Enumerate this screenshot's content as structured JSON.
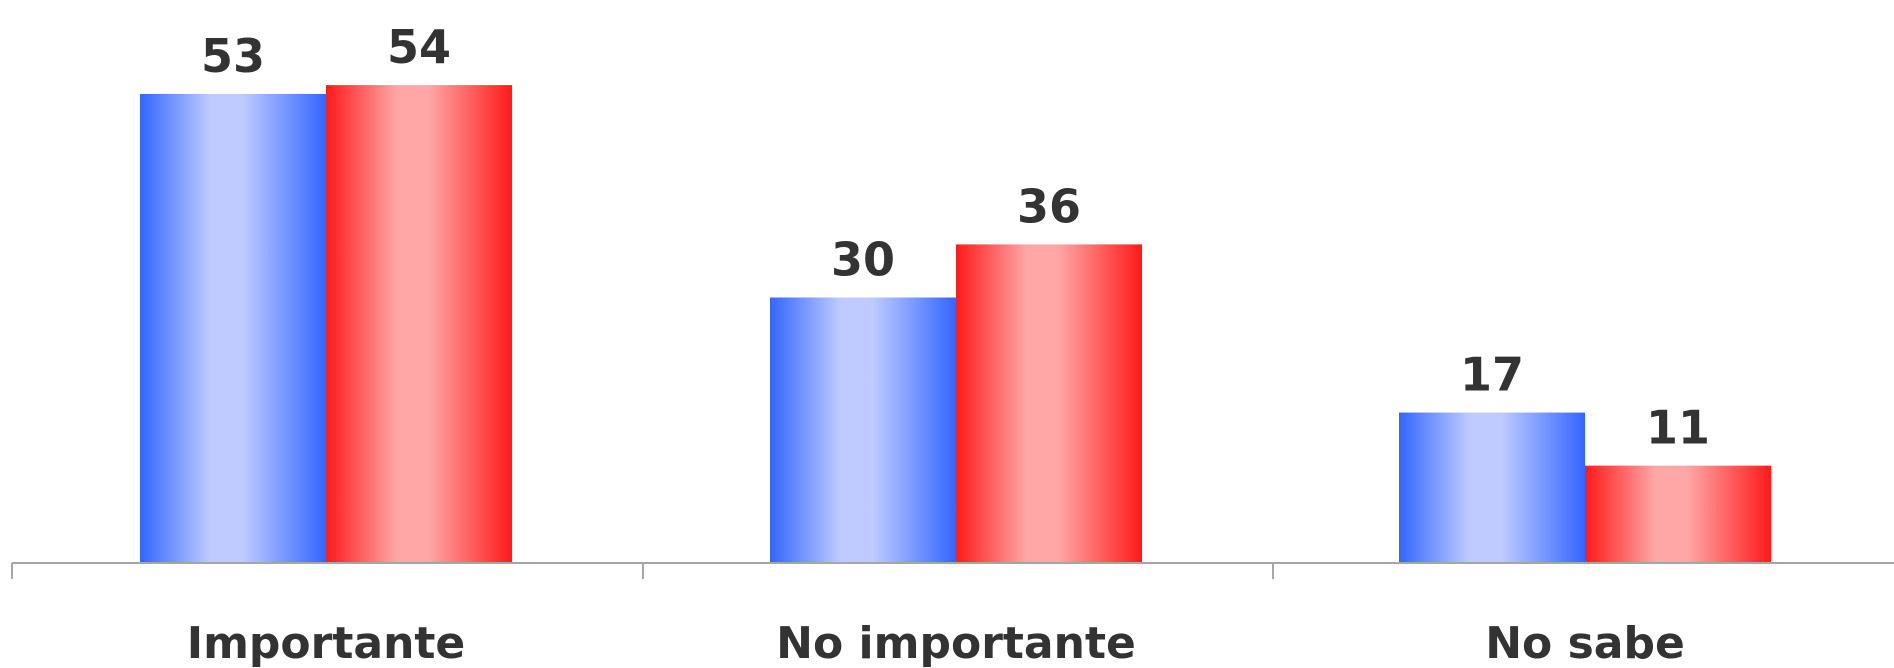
{
  "chart_data": {
    "type": "bar",
    "categories": [
      "Importante",
      "No importante",
      "No sabe"
    ],
    "series": [
      {
        "values": [
          53,
          30,
          17
        ],
        "color": "#3366ff",
        "highlight": "#bfcbff"
      },
      {
        "values": [
          54,
          36,
          11
        ],
        "color": "#ff1a1a",
        "highlight": "#ffa6a6"
      }
    ],
    "ylim": [
      0,
      60
    ],
    "grid": false,
    "legend": "none",
    "data_labels": true
  }
}
